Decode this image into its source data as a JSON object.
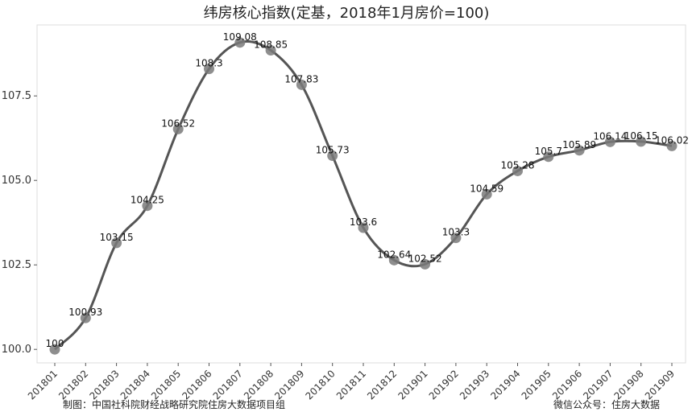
{
  "footer": {
    "left": "制图：中国社科院财经战略研究院住房大数据项目组",
    "right": "微信公众号：住房大数据"
  },
  "colors": {
    "line": "#555555",
    "point": "#7a7a7a",
    "panel_border": "#dcdcdc"
  },
  "chart_data": {
    "type": "line",
    "title": "纬房核心指数(定基，2018年1月房价=100)",
    "xlabel": "",
    "ylabel": "",
    "categories": [
      "201801",
      "201802",
      "201803",
      "201804",
      "201805",
      "201806",
      "201807",
      "201808",
      "201809",
      "201810",
      "201811",
      "201812",
      "201901",
      "201902",
      "201903",
      "201904",
      "201905",
      "201906",
      "201907",
      "201908",
      "201909"
    ],
    "values": [
      100,
      100.93,
      103.15,
      104.25,
      106.52,
      108.3,
      109.08,
      108.85,
      107.83,
      105.73,
      103.6,
      102.64,
      102.52,
      103.3,
      104.59,
      105.28,
      105.7,
      105.89,
      106.14,
      106.15,
      106.02
    ],
    "data_labels": [
      "100",
      "100.93",
      "103.15",
      "104.25",
      "106.52",
      "108.3",
      "109.08",
      "108.85",
      "107.83",
      "105.73",
      "103.6",
      "102.64",
      "102.52",
      "103.3",
      "104.59",
      "105.28",
      "105.7",
      "105.89",
      "106.14",
      "106.15",
      "106.02"
    ],
    "yticks": [
      100.0,
      102.5,
      105.0,
      107.5
    ],
    "ytick_labels": [
      "100.0",
      "102.5",
      "105.0",
      "107.5"
    ],
    "ylim": [
      99.6,
      109.6
    ],
    "grid": false,
    "legend": "none"
  }
}
